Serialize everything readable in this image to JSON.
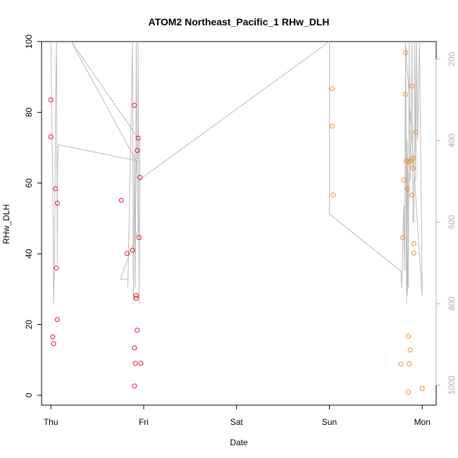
{
  "chart_data": {
    "type": "scatter",
    "title": "ATOM2 Northeast_Pacific_1 RHw_DLH",
    "xlabel": "Date",
    "ylabel": "RHw_DLH",
    "x_ticks": [
      "Thu",
      "Fri",
      "Sat",
      "Sun",
      "Mon"
    ],
    "xlim": [
      -0.1,
      4.15
    ],
    "ylim": [
      -2.8,
      100
    ],
    "y_ticks": [
      0,
      20,
      40,
      60,
      80,
      100
    ],
    "y2_ticks": [
      200,
      400,
      600,
      800,
      1000
    ],
    "y2lim": [
      1049,
      157
    ],
    "grid": false,
    "series": [
      {
        "color": "#e8141e",
        "points": [
          [
            0.0,
            83.5
          ],
          [
            0.0,
            73.1
          ],
          [
            0.02,
            16.5
          ],
          [
            0.03,
            14.6
          ],
          [
            0.05,
            58.4
          ],
          [
            0.06,
            36.0
          ],
          [
            0.07,
            54.3
          ],
          [
            0.07,
            21.4
          ],
          [
            0.76,
            55.1
          ],
          [
            0.82,
            40.1
          ],
          [
            0.88,
            41.0
          ],
          [
            0.9,
            82.0
          ],
          [
            0.9,
            13.4
          ],
          [
            0.9,
            2.6
          ],
          [
            0.91,
            9.0
          ],
          [
            0.92,
            27.4
          ],
          [
            0.92,
            28.2
          ],
          [
            0.93,
            18.4
          ],
          [
            0.93,
            69.2
          ],
          [
            0.94,
            72.7
          ],
          [
            0.95,
            44.6
          ],
          [
            0.96,
            61.6
          ],
          [
            0.97,
            9.0
          ]
        ]
      },
      {
        "color": "#f08c1e",
        "points": [
          [
            3.03,
            86.7
          ],
          [
            3.03,
            76.1
          ],
          [
            3.04,
            56.6
          ],
          [
            3.77,
            8.8
          ],
          [
            3.79,
            44.6
          ],
          [
            3.8,
            60.9
          ],
          [
            3.82,
            96.9
          ],
          [
            3.82,
            85.1
          ],
          [
            3.83,
            66.3
          ],
          [
            3.84,
            58.3
          ],
          [
            3.85,
            16.7
          ],
          [
            3.85,
            0.9
          ],
          [
            3.86,
            66.0
          ],
          [
            3.86,
            8.9
          ],
          [
            3.87,
            12.8
          ],
          [
            3.88,
            66.3
          ],
          [
            3.89,
            56.6
          ],
          [
            3.89,
            87.4
          ],
          [
            3.9,
            67.0
          ],
          [
            3.9,
            64.2
          ],
          [
            3.91,
            42.9
          ],
          [
            3.91,
            40.2
          ],
          [
            3.93,
            74.4
          ],
          [
            4.0,
            1.9
          ]
        ]
      }
    ],
    "altitude_trace": {
      "color": "#bbbbbb",
      "axis": "right",
      "points": [
        [
          0.0,
          157
        ],
        [
          0.02,
          500
        ],
        [
          0.03,
          800
        ],
        [
          0.04,
          700
        ],
        [
          0.05,
          300
        ],
        [
          0.06,
          157
        ],
        [
          0.07,
          700
        ],
        [
          0.07,
          500
        ],
        [
          0.08,
          410
        ],
        [
          0.94,
          450
        ],
        [
          0.94,
          157
        ],
        [
          0.95,
          800
        ],
        [
          0.96,
          400
        ],
        [
          0.22,
          157
        ],
        [
          0.92,
          450
        ],
        [
          0.93,
          500
        ],
        [
          0.94,
          620
        ],
        [
          0.75,
          740
        ],
        [
          0.83,
          740
        ],
        [
          0.83,
          760
        ],
        [
          0.88,
          157
        ],
        [
          0.89,
          800
        ],
        [
          0.9,
          430
        ],
        [
          0.91,
          760
        ],
        [
          0.92,
          157
        ],
        [
          0.93,
          500
        ],
        [
          3.0,
          157
        ],
        [
          3.0,
          500
        ],
        [
          3.0,
          580
        ],
        [
          3.77,
          720
        ],
        [
          3.78,
          760
        ],
        [
          3.8,
          560
        ],
        [
          3.81,
          720
        ],
        [
          3.82,
          157
        ],
        [
          3.83,
          800
        ],
        [
          3.84,
          400
        ],
        [
          3.85,
          760
        ],
        [
          3.86,
          157
        ],
        [
          3.87,
          500
        ],
        [
          3.88,
          400
        ],
        [
          3.89,
          157
        ],
        [
          3.9,
          600
        ],
        [
          3.91,
          600
        ],
        [
          3.92,
          157
        ],
        [
          3.93,
          500
        ],
        [
          3.94,
          157
        ],
        [
          3.95,
          400
        ],
        [
          3.97,
          157
        ],
        [
          4.0,
          780
        ],
        [
          3.82,
          157
        ],
        [
          3.84,
          780
        ],
        [
          3.86,
          480
        ]
      ]
    }
  }
}
